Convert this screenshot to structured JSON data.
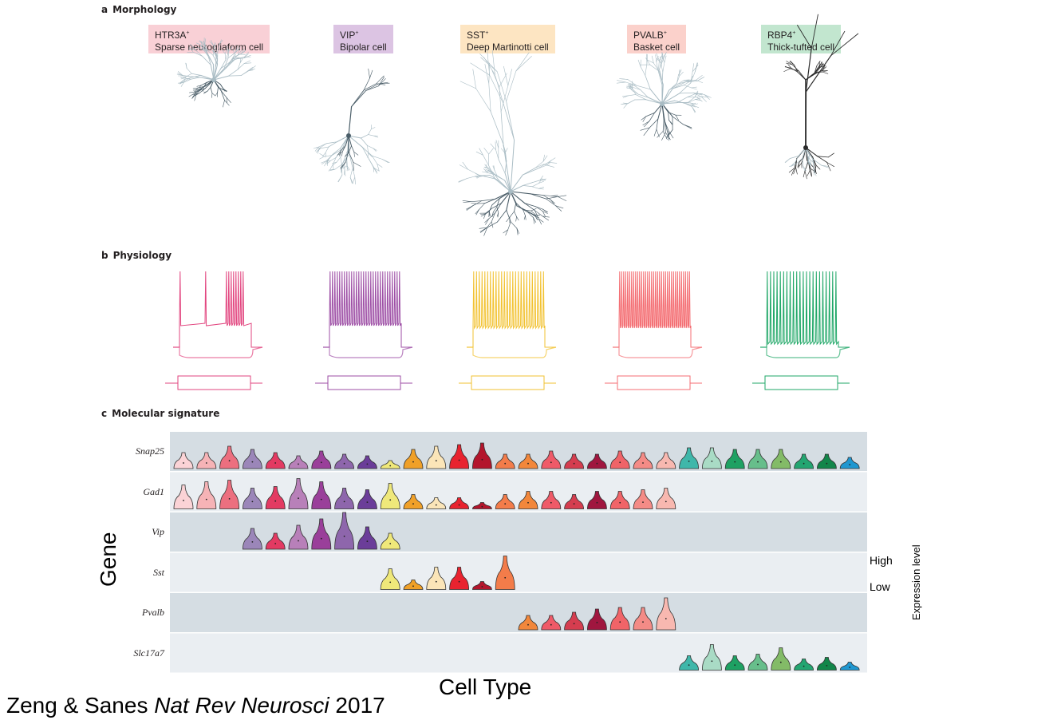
{
  "panels": {
    "a": {
      "letter": "a",
      "title": "Morphology"
    },
    "b": {
      "letter": "b",
      "title": "Physiology"
    },
    "c": {
      "letter": "c",
      "title": "Molecular signature"
    }
  },
  "cell_types": [
    {
      "marker": "HTR3A",
      "sup": "+",
      "name": "Sparse neurogliaform cell",
      "box_color": "#f9d0d6",
      "trace_color": "#e2457f"
    },
    {
      "marker": "VIP",
      "sup": "+",
      "name": "Bipolar cell",
      "box_color": "#dcc4e3",
      "trace_color": "#9d4ea5"
    },
    {
      "marker": "SST",
      "sup": "+",
      "name": "Deep Martinotti cell",
      "box_color": "#fde5c2",
      "trace_color": "#f2c230"
    },
    {
      "marker": "PVALB",
      "sup": "+",
      "name": "Basket cell",
      "box_color": "#fbd1cb",
      "trace_color": "#f46e73"
    },
    {
      "marker": "RBP4",
      "sup": "+",
      "name": "Thick-tufted cell",
      "box_color": "#c2e6cf",
      "trace_color": "#1fa767"
    }
  ],
  "molecular": {
    "genes": [
      "Snap25",
      "Gad1",
      "Vip",
      "Sst",
      "Pvalb",
      "Slc17a7"
    ],
    "axis_y": "Gene",
    "axis_x": "Cell Type",
    "legend_title": "Expression level",
    "legend_high": "High",
    "legend_low": "Low",
    "column_colors": [
      "#fbd3d6",
      "#f6b3b6",
      "#ec6f7f",
      "#9b86b9",
      "#e33a62",
      "#b880b9",
      "#9a3f9a",
      "#8e66ac",
      "#6b3d99",
      "#efe87a",
      "#f0a028",
      "#fbe5b8",
      "#e8232f",
      "#b3152c",
      "#f37c4a",
      "#f2873b",
      "#ef5a68",
      "#d53d4f",
      "#a0163f",
      "#f06468",
      "#f48b86",
      "#f8b8b0",
      "#3fb7aa",
      "#a9dbc5",
      "#1ea163",
      "#67be8b",
      "#83bb67",
      "#23a571",
      "#12864a",
      "#1f97d0"
    ],
    "expression": {
      "Snap25": [
        0.35,
        0.35,
        0.55,
        0.45,
        0.35,
        0.25,
        0.4,
        0.3,
        0.25,
        0.1,
        0.45,
        0.55,
        0.6,
        0.65,
        0.3,
        0.3,
        0.4,
        0.3,
        0.3,
        0.4,
        0.35,
        0.35,
        0.5,
        0.5,
        0.45,
        0.45,
        0.45,
        0.3,
        0.3,
        0.2
      ],
      "Gad1": [
        0.6,
        0.7,
        0.75,
        0.5,
        0.55,
        0.8,
        0.7,
        0.5,
        0.45,
        0.65,
        0.3,
        0.2,
        0.2,
        0.05,
        0.3,
        0.4,
        0.4,
        0.3,
        0.4,
        0.4,
        0.45,
        0.5,
        0,
        0,
        0,
        0,
        0,
        0,
        0,
        0
      ],
      "Vip": [
        0,
        0,
        0,
        0.5,
        0.35,
        0.6,
        0.8,
        1.0,
        0.55,
        0.35,
        0,
        0,
        0,
        0,
        0,
        0,
        0,
        0,
        0,
        0,
        0,
        0,
        0,
        0,
        0,
        0,
        0,
        0,
        0,
        0
      ],
      "Sst": [
        0,
        0,
        0,
        0,
        0,
        0,
        0,
        0,
        0,
        0.5,
        0.15,
        0.55,
        0.55,
        0.1,
        0.9,
        0,
        0,
        0,
        0,
        0,
        0,
        0,
        0,
        0,
        0,
        0,
        0,
        0,
        0,
        0
      ],
      "Pvalb": [
        0,
        0,
        0,
        0,
        0,
        0,
        0,
        0,
        0,
        0,
        0,
        0,
        0,
        0,
        0,
        0.3,
        0.3,
        0.4,
        0.5,
        0.55,
        0.55,
        0.85,
        0,
        0,
        0,
        0,
        0,
        0,
        0,
        0
      ],
      "Slc17a7": [
        0,
        0,
        0,
        0,
        0,
        0,
        0,
        0,
        0,
        0,
        0,
        0,
        0,
        0,
        0,
        0,
        0,
        0,
        0,
        0,
        0,
        0,
        0.3,
        0.65,
        0.3,
        0.35,
        0.55,
        0.2,
        0.25,
        0.1
      ]
    }
  },
  "citation": {
    "authors": "Zeng & Sanes ",
    "journal": "Nat Rev Neurosci",
    "year": " 2017"
  }
}
